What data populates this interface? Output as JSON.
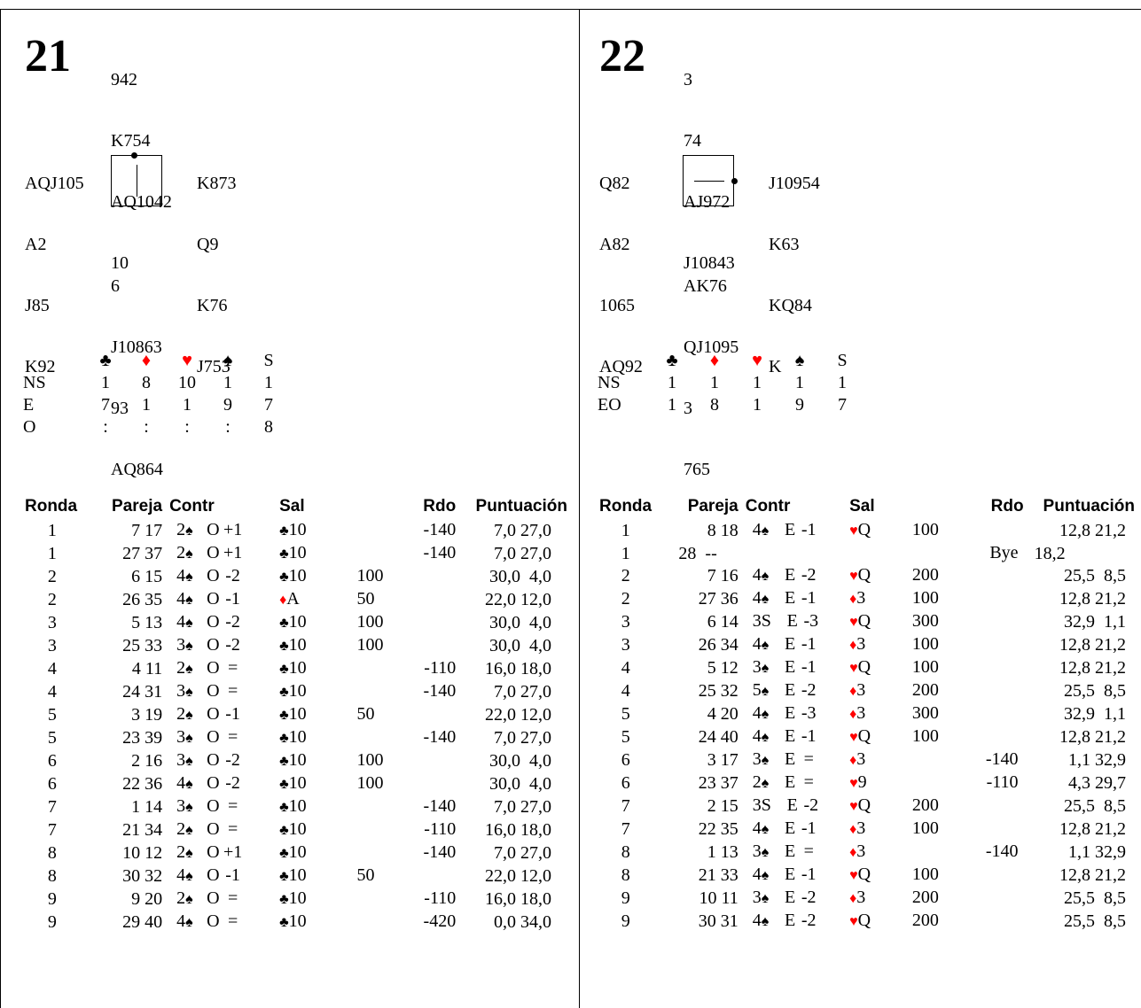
{
  "symbols": {
    "clubs": "♣",
    "diamonds": "♦",
    "hearts": "♥",
    "spades": "♠"
  },
  "colors": {
    "red_suit": "#ff0000",
    "text": "#000000"
  },
  "headers": {
    "ronda": "Ronda",
    "pareja": "Pareja",
    "contr": "Contr",
    "sal": "Sal",
    "rdo": "Rdo",
    "puntuacion": "Puntuación"
  },
  "boards": [
    {
      "number": "21",
      "north": [
        "942",
        "K754",
        "AQ1042",
        "10"
      ],
      "west": [
        "AQJ105",
        "A2",
        "J85",
        "K92"
      ],
      "east": [
        "K873",
        "Q9",
        "K76",
        "J753"
      ],
      "south": [
        "6",
        "J10863",
        "93",
        "AQ864"
      ],
      "dealer_icon": "dealer-north-vulnerable-ns-icon",
      "tricks": {
        "header_last": "S",
        "rows": [
          {
            "label": "NS",
            "values": [
              "1",
              "8",
              "10",
              "1",
              "1"
            ]
          },
          {
            "label": "E",
            "values": [
              "7",
              "1",
              "1",
              "9",
              "7"
            ]
          },
          {
            "label": "O",
            "values": [
              ":",
              ":",
              ":",
              ":",
              "8"
            ]
          }
        ]
      },
      "results": [
        {
          "ronda": "1",
          "pareja": "7 17",
          "level": "2",
          "suit": "♠",
          "decl": "O",
          "res": "+1",
          "lead_suit": "♣",
          "lead_card": "10",
          "rdo_ns": "",
          "rdo_ew": "-140",
          "score": "7,0 27,0"
        },
        {
          "ronda": "1",
          "pareja": "27 37",
          "level": "2",
          "suit": "♠",
          "decl": "O",
          "res": "+1",
          "lead_suit": "♣",
          "lead_card": "10",
          "rdo_ns": "",
          "rdo_ew": "-140",
          "score": "7,0 27,0"
        },
        {
          "ronda": "2",
          "pareja": "6 15",
          "level": "4",
          "suit": "♠",
          "decl": "O",
          "res": "-2",
          "lead_suit": "♣",
          "lead_card": "10",
          "rdo_ns": "100",
          "rdo_ew": "",
          "score": "30,0  4,0"
        },
        {
          "ronda": "2",
          "pareja": "26 35",
          "level": "4",
          "suit": "♠",
          "decl": "O",
          "res": "-1",
          "lead_suit": "♦",
          "lead_card": "A",
          "rdo_ns": "50",
          "rdo_ew": "",
          "score": "22,0 12,0"
        },
        {
          "ronda": "3",
          "pareja": "5 13",
          "level": "4",
          "suit": "♠",
          "decl": "O",
          "res": "-2",
          "lead_suit": "♣",
          "lead_card": "10",
          "rdo_ns": "100",
          "rdo_ew": "",
          "score": "30,0  4,0"
        },
        {
          "ronda": "3",
          "pareja": "25 33",
          "level": "3",
          "suit": "♠",
          "decl": "O",
          "res": "-2",
          "lead_suit": "♣",
          "lead_card": "10",
          "rdo_ns": "100",
          "rdo_ew": "",
          "score": "30,0  4,0"
        },
        {
          "ronda": "4",
          "pareja": "4 11",
          "level": "2",
          "suit": "♠",
          "decl": "O",
          "res": "=",
          "lead_suit": "♣",
          "lead_card": "10",
          "rdo_ns": "",
          "rdo_ew": "-110",
          "score": "16,0 18,0"
        },
        {
          "ronda": "4",
          "pareja": "24 31",
          "level": "3",
          "suit": "♠",
          "decl": "O",
          "res": "=",
          "lead_suit": "♣",
          "lead_card": "10",
          "rdo_ns": "",
          "rdo_ew": "-140",
          "score": "7,0 27,0"
        },
        {
          "ronda": "5",
          "pareja": "3 19",
          "level": "2",
          "suit": "♠",
          "decl": "O",
          "res": "-1",
          "lead_suit": "♣",
          "lead_card": "10",
          "rdo_ns": "50",
          "rdo_ew": "",
          "score": "22,0 12,0"
        },
        {
          "ronda": "5",
          "pareja": "23 39",
          "level": "3",
          "suit": "♠",
          "decl": "O",
          "res": "=",
          "lead_suit": "♣",
          "lead_card": "10",
          "rdo_ns": "",
          "rdo_ew": "-140",
          "score": "7,0 27,0"
        },
        {
          "ronda": "6",
          "pareja": "2 16",
          "level": "3",
          "suit": "♠",
          "decl": "O",
          "res": "-2",
          "lead_suit": "♣",
          "lead_card": "10",
          "rdo_ns": "100",
          "rdo_ew": "",
          "score": "30,0  4,0"
        },
        {
          "ronda": "6",
          "pareja": "22 36",
          "level": "4",
          "suit": "♠",
          "decl": "O",
          "res": "-2",
          "lead_suit": "♣",
          "lead_card": "10",
          "rdo_ns": "100",
          "rdo_ew": "",
          "score": "30,0  4,0"
        },
        {
          "ronda": "7",
          "pareja": "1 14",
          "level": "3",
          "suit": "♠",
          "decl": "O",
          "res": "=",
          "lead_suit": "♣",
          "lead_card": "10",
          "rdo_ns": "",
          "rdo_ew": "-140",
          "score": "7,0 27,0"
        },
        {
          "ronda": "7",
          "pareja": "21 34",
          "level": "2",
          "suit": "♠",
          "decl": "O",
          "res": "=",
          "lead_suit": "♣",
          "lead_card": "10",
          "rdo_ns": "",
          "rdo_ew": "-110",
          "score": "16,0 18,0"
        },
        {
          "ronda": "8",
          "pareja": "10 12",
          "level": "2",
          "suit": "♠",
          "decl": "O",
          "res": "+1",
          "lead_suit": "♣",
          "lead_card": "10",
          "rdo_ns": "",
          "rdo_ew": "-140",
          "score": "7,0 27,0"
        },
        {
          "ronda": "8",
          "pareja": "30 32",
          "level": "4",
          "suit": "♠",
          "decl": "O",
          "res": "-1",
          "lead_suit": "♣",
          "lead_card": "10",
          "rdo_ns": "50",
          "rdo_ew": "",
          "score": "22,0 12,0"
        },
        {
          "ronda": "9",
          "pareja": "9 20",
          "level": "2",
          "suit": "♠",
          "decl": "O",
          "res": "=",
          "lead_suit": "♣",
          "lead_card": "10",
          "rdo_ns": "",
          "rdo_ew": "-110",
          "score": "16,0 18,0"
        },
        {
          "ronda": "9",
          "pareja": "29 40",
          "level": "4",
          "suit": "♠",
          "decl": "O",
          "res": "=",
          "lead_suit": "♣",
          "lead_card": "10",
          "rdo_ns": "",
          "rdo_ew": "-420",
          "score": "0,0 34,0"
        }
      ]
    },
    {
      "number": "22",
      "north": [
        "3",
        "74",
        "AJ972",
        "J10843"
      ],
      "west": [
        "Q82",
        "A82",
        "1065",
        "AQ92"
      ],
      "east": [
        "J10954",
        "K63",
        "KQ84",
        "K"
      ],
      "south": [
        "AK76",
        "QJ1095",
        "3",
        "765"
      ],
      "dealer_icon": "dealer-east-vulnerable-ew-icon",
      "tricks": {
        "header_last": "S",
        "rows": [
          {
            "label": "NS",
            "values": [
              "1",
              "1",
              "1",
              "1",
              "1"
            ]
          },
          {
            "label": "EO",
            "values": [
              "1",
              "8",
              "1",
              "9",
              "7"
            ]
          }
        ]
      },
      "results": [
        {
          "ronda": "1",
          "pareja": "8 18",
          "level": "4",
          "suit": "♠",
          "decl": "E",
          "res": "-1",
          "lead_suit": "♥",
          "lead_card": "Q",
          "rdo_ns": "100",
          "rdo_ew": "",
          "score": "12,8 21,2"
        },
        {
          "ronda": "1",
          "pareja": "28  --",
          "level": "",
          "suit": "",
          "decl": "",
          "res": "",
          "lead_suit": "",
          "lead_card": "",
          "rdo_ns": "",
          "rdo_ew": "Bye",
          "score": "18,2",
          "bye": true
        },
        {
          "ronda": "2",
          "pareja": "7 16",
          "level": "4",
          "suit": "♠",
          "decl": "E",
          "res": "-2",
          "lead_suit": "♥",
          "lead_card": "Q",
          "rdo_ns": "200",
          "rdo_ew": "",
          "score": "25,5  8,5"
        },
        {
          "ronda": "2",
          "pareja": "27 36",
          "level": "4",
          "suit": "♠",
          "decl": "E",
          "res": "-1",
          "lead_suit": "♦",
          "lead_card": "3",
          "rdo_ns": "100",
          "rdo_ew": "",
          "score": "12,8 21,2"
        },
        {
          "ronda": "3",
          "pareja": "6 14",
          "level": "3S",
          "suit": "",
          "decl": "E",
          "res": "-3",
          "lead_suit": "♥",
          "lead_card": "Q",
          "rdo_ns": "300",
          "rdo_ew": "",
          "score": "32,9  1,1"
        },
        {
          "ronda": "3",
          "pareja": "26 34",
          "level": "4",
          "suit": "♠",
          "decl": "E",
          "res": "-1",
          "lead_suit": "♦",
          "lead_card": "3",
          "rdo_ns": "100",
          "rdo_ew": "",
          "score": "12,8 21,2"
        },
        {
          "ronda": "4",
          "pareja": "5 12",
          "level": "3",
          "suit": "♠",
          "decl": "E",
          "res": "-1",
          "lead_suit": "♥",
          "lead_card": "Q",
          "rdo_ns": "100",
          "rdo_ew": "",
          "score": "12,8 21,2"
        },
        {
          "ronda": "4",
          "pareja": "25 32",
          "level": "5",
          "suit": "♠",
          "decl": "E",
          "res": "-2",
          "lead_suit": "♦",
          "lead_card": "3",
          "rdo_ns": "200",
          "rdo_ew": "",
          "score": "25,5  8,5"
        },
        {
          "ronda": "5",
          "pareja": "4 20",
          "level": "4",
          "suit": "♠",
          "decl": "E",
          "res": "-3",
          "lead_suit": "♦",
          "lead_card": "3",
          "rdo_ns": "300",
          "rdo_ew": "",
          "score": "32,9  1,1"
        },
        {
          "ronda": "5",
          "pareja": "24 40",
          "level": "4",
          "suit": "♠",
          "decl": "E",
          "res": "-1",
          "lead_suit": "♥",
          "lead_card": "Q",
          "rdo_ns": "100",
          "rdo_ew": "",
          "score": "12,8 21,2"
        },
        {
          "ronda": "6",
          "pareja": "3 17",
          "level": "3",
          "suit": "♠",
          "decl": "E",
          "res": "=",
          "lead_suit": "♦",
          "lead_card": "3",
          "rdo_ns": "",
          "rdo_ew": "-140",
          "score": "1,1 32,9"
        },
        {
          "ronda": "6",
          "pareja": "23 37",
          "level": "2",
          "suit": "♠",
          "decl": "E",
          "res": "=",
          "lead_suit": "♥",
          "lead_card": "9",
          "rdo_ns": "",
          "rdo_ew": "-110",
          "score": "4,3 29,7"
        },
        {
          "ronda": "7",
          "pareja": "2 15",
          "level": "3S",
          "suit": "",
          "decl": "E",
          "res": "-2",
          "lead_suit": "♥",
          "lead_card": "Q",
          "rdo_ns": "200",
          "rdo_ew": "",
          "score": "25,5  8,5"
        },
        {
          "ronda": "7",
          "pareja": "22 35",
          "level": "4",
          "suit": "♠",
          "decl": "E",
          "res": "-1",
          "lead_suit": "♦",
          "lead_card": "3",
          "rdo_ns": "100",
          "rdo_ew": "",
          "score": "12,8 21,2"
        },
        {
          "ronda": "8",
          "pareja": "1 13",
          "level": "3",
          "suit": "♠",
          "decl": "E",
          "res": "=",
          "lead_suit": "♦",
          "lead_card": "3",
          "rdo_ns": "",
          "rdo_ew": "-140",
          "score": "1,1 32,9"
        },
        {
          "ronda": "8",
          "pareja": "21 33",
          "level": "4",
          "suit": "♠",
          "decl": "E",
          "res": "-1",
          "lead_suit": "♥",
          "lead_card": "Q",
          "rdo_ns": "100",
          "rdo_ew": "",
          "score": "12,8 21,2"
        },
        {
          "ronda": "9",
          "pareja": "10 11",
          "level": "3",
          "suit": "♠",
          "decl": "E",
          "res": "-2",
          "lead_suit": "♦",
          "lead_card": "3",
          "rdo_ns": "200",
          "rdo_ew": "",
          "score": "25,5  8,5"
        },
        {
          "ronda": "9",
          "pareja": "30 31",
          "level": "4",
          "suit": "♠",
          "decl": "E",
          "res": "-2",
          "lead_suit": "♥",
          "lead_card": "Q",
          "rdo_ns": "200",
          "rdo_ew": "",
          "score": "25,5  8,5"
        }
      ]
    }
  ]
}
